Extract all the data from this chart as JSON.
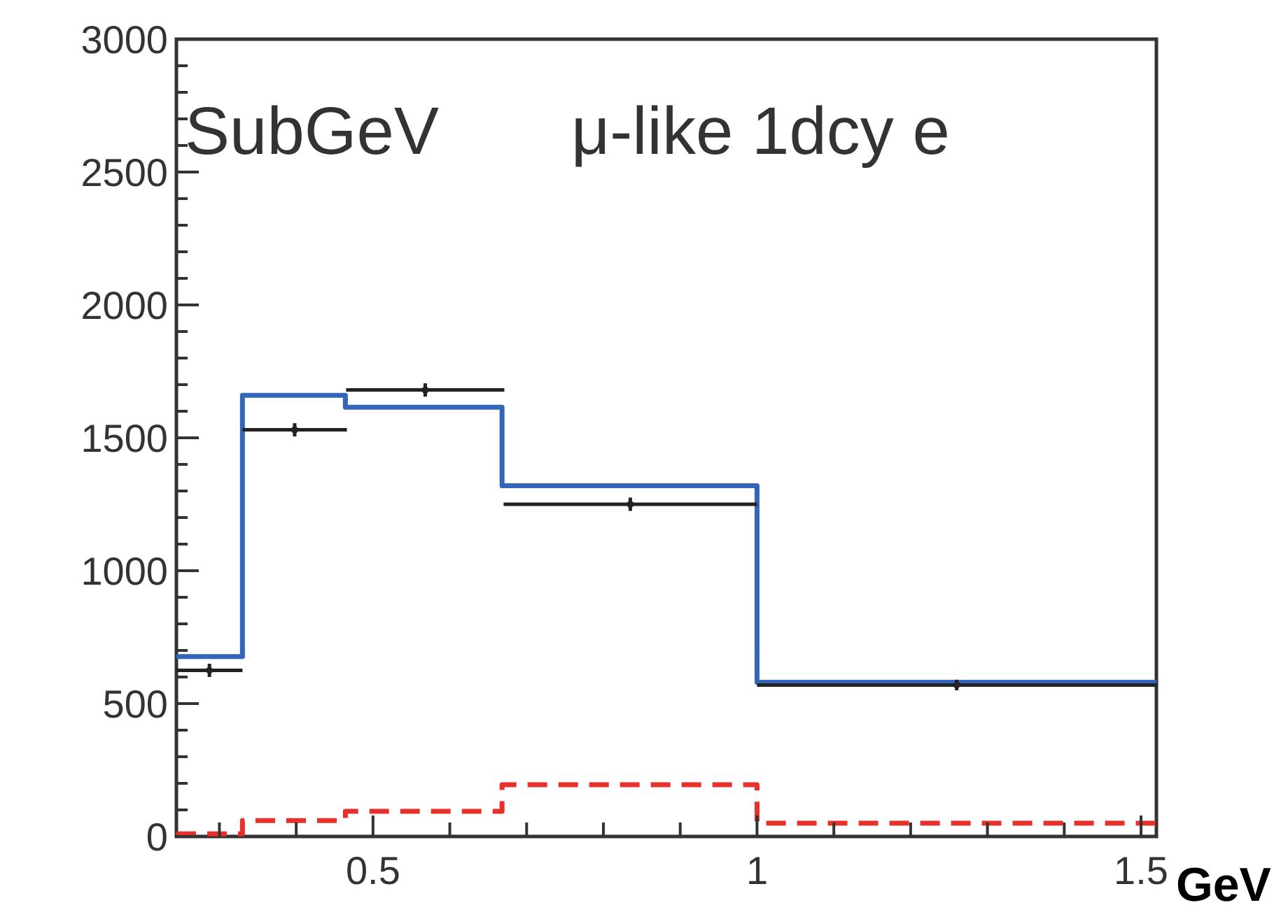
{
  "chart_data": {
    "type": "histogram",
    "bins": [
      0.244,
      0.33,
      0.464,
      0.668,
      1.0,
      1.52
    ],
    "xlim": [
      0.244,
      1.52
    ],
    "ylim": [
      0,
      3000
    ],
    "xticks": [
      {
        "value": 0.3,
        "label": null
      },
      {
        "value": 0.4,
        "label": null
      },
      0.5,
      {
        "value": 0.6,
        "label": null
      },
      {
        "value": 0.7,
        "label": null
      },
      {
        "value": 0.8,
        "label": null
      },
      {
        "value": 0.9,
        "label": null
      },
      1,
      {
        "value": 1.1,
        "label": null
      },
      {
        "value": 1.2,
        "label": null
      },
      {
        "value": 1.3,
        "label": null
      },
      {
        "value": 1.4,
        "label": null
      },
      1.5
    ],
    "yticks": [
      0,
      500,
      1000,
      1500,
      2000,
      2500,
      3000
    ],
    "xlabel": "GeV",
    "annotations": [
      "SubGeV",
      "μ-like 1dcy e"
    ],
    "series": [
      {
        "color": "#3366bb",
        "values": [
          677,
          1660,
          1615,
          1320,
          580
        ]
      },
      {
        "color": "#e8302a",
        "line_style": "dashed",
        "values": [
          10,
          60,
          95,
          195,
          50
        ]
      },
      {
        "type": "scatter",
        "color": "#222222",
        "marker": "circle",
        "x": [
          0.287,
          0.398,
          0.568,
          0.835,
          1.26
        ],
        "values": [
          625,
          1530,
          1680,
          1250,
          570
        ],
        "errors": [
          25,
          25,
          25,
          25,
          20
        ],
        "xerrors": [
          0.043,
          0.068,
          0.103,
          0.165,
          0.26
        ]
      }
    ]
  }
}
